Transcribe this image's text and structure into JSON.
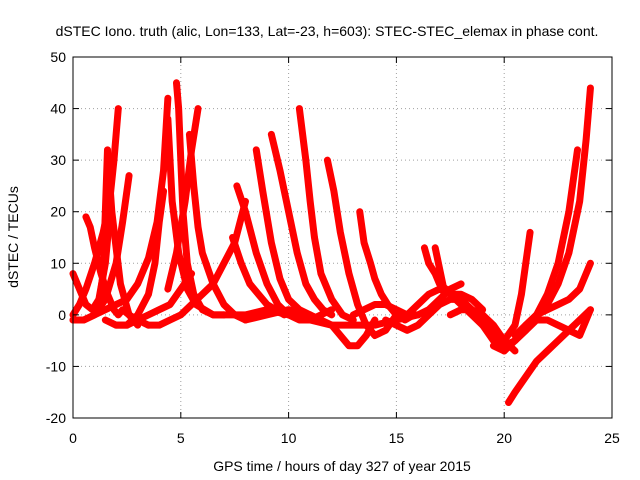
{
  "chart_data": {
    "type": "scatter",
    "title": "dSTEC Iono. truth (alic, Lon=133, Lat=-23, h=603): STEC-STEC_elemax in phase cont.",
    "xlabel": "GPS time / hours of day 327 of year 2015",
    "ylabel": "dSTEC  / TECUs",
    "xlim": [
      0,
      25
    ],
    "ylim": [
      -20,
      50
    ],
    "xticks": [
      0,
      5,
      10,
      15,
      20,
      25
    ],
    "yticks": [
      -20,
      -10,
      0,
      10,
      20,
      30,
      40,
      50
    ],
    "grid": true,
    "marker": "+",
    "color": "#ff0000",
    "series": [
      {
        "x": [
          0.0,
          0.3,
          0.6,
          0.9,
          1.2,
          1.5,
          1.7
        ],
        "y": [
          8,
          5,
          2,
          1,
          3,
          10,
          19
        ]
      },
      {
        "x": [
          0.6,
          0.8,
          1.0,
          1.3,
          1.6,
          1.9,
          2.1,
          2.3,
          2.6,
          3.0,
          3.5
        ],
        "y": [
          19,
          17,
          13,
          8,
          4,
          1,
          0,
          1,
          0,
          -1,
          -2
        ]
      },
      {
        "x": [
          0.0,
          0.3,
          0.6,
          1.0,
          1.4,
          1.7,
          1.9,
          2.1
        ],
        "y": [
          0,
          2,
          5,
          10,
          16,
          22,
          30,
          40
        ]
      },
      {
        "x": [
          0.0,
          0.5,
          1.0,
          1.5,
          2.0,
          2.3,
          2.6
        ],
        "y": [
          -1,
          -1,
          0,
          3,
          10,
          18,
          27
        ]
      },
      {
        "x": [
          0.0,
          0.5,
          1.0,
          1.5,
          2.0,
          2.5,
          3.0,
          3.5,
          3.9,
          4.2,
          4.4
        ],
        "y": [
          -1,
          -1,
          0,
          1,
          2,
          3,
          6,
          11,
          18,
          28,
          42
        ]
      },
      {
        "x": [
          1.2,
          1.4,
          1.5,
          1.6,
          1.8,
          2.2,
          2.6,
          3.0
        ],
        "y": [
          2,
          8,
          20,
          32,
          20,
          6,
          0,
          -2
        ]
      },
      {
        "x": [
          2.0,
          2.5,
          3.0,
          3.5,
          3.8,
          4.0,
          4.2
        ],
        "y": [
          -2,
          -2,
          0,
          4,
          10,
          18,
          24
        ]
      },
      {
        "x": [
          1.5,
          2.0,
          2.5,
          3.0,
          3.5,
          4.0,
          4.5,
          5.0,
          5.5
        ],
        "y": [
          -1,
          -2,
          -2,
          -1,
          0,
          1,
          2,
          5,
          8
        ]
      },
      {
        "x": [
          4.4,
          4.6,
          4.9,
          5.3,
          5.7,
          6.1,
          6.5,
          7.0
        ],
        "y": [
          38,
          22,
          12,
          5,
          2,
          1,
          0,
          0
        ]
      },
      {
        "x": [
          4.8,
          4.9,
          5.0,
          5.1,
          5.3,
          5.6,
          6.0,
          6.5,
          7.0
        ],
        "y": [
          45,
          40,
          30,
          20,
          10,
          4,
          1,
          0,
          0
        ]
      },
      {
        "x": [
          4.4,
          4.8,
          5.2,
          5.5,
          5.8
        ],
        "y": [
          5,
          12,
          22,
          32,
          40
        ]
      },
      {
        "x": [
          3.5,
          4.0,
          4.5,
          5.0,
          5.5,
          6.0,
          6.5,
          7.0,
          7.5,
          8.0
        ],
        "y": [
          -2,
          -2,
          -1,
          0,
          2,
          4,
          6,
          10,
          14,
          22
        ]
      },
      {
        "x": [
          5.4,
          5.6,
          5.8,
          6.0,
          6.5,
          7.0,
          7.5,
          8.0,
          8.5
        ],
        "y": [
          35,
          25,
          17,
          12,
          6,
          2,
          0,
          -1,
          0
        ]
      },
      {
        "x": [
          7.6,
          8.0,
          8.5,
          9.0,
          9.5,
          10.0,
          10.5,
          11.0,
          11.5,
          12.0
        ],
        "y": [
          25,
          20,
          12,
          6,
          2,
          0,
          -1,
          -1,
          0,
          1
        ]
      },
      {
        "x": [
          7.4,
          7.8,
          8.2,
          8.6,
          9.0,
          9.4,
          9.8
        ],
        "y": [
          15,
          10,
          6,
          4,
          2,
          1,
          0
        ]
      },
      {
        "x": [
          8.5,
          8.8,
          9.2,
          9.6,
          10.0,
          10.5,
          11.0
        ],
        "y": [
          32,
          24,
          14,
          7,
          3,
          1,
          0
        ]
      },
      {
        "x": [
          9.2,
          9.6,
          10.0,
          10.4,
          10.8,
          11.2,
          11.6,
          12.0
        ],
        "y": [
          35,
          28,
          20,
          12,
          6,
          3,
          1,
          0
        ]
      },
      {
        "x": [
          10.5,
          10.8,
          11.0,
          11.2,
          11.5,
          12.0,
          12.5,
          13.0
        ],
        "y": [
          40,
          30,
          22,
          15,
          8,
          3,
          0,
          -1
        ]
      },
      {
        "x": [
          11.8,
          12.1,
          12.4,
          12.8,
          13.2,
          13.6,
          14.0,
          14.5,
          15.0
        ],
        "y": [
          30,
          24,
          16,
          8,
          2,
          -2,
          -4,
          -3,
          0
        ]
      },
      {
        "x": [
          8.0,
          9.0,
          10.0,
          11.0,
          12.0,
          12.8,
          13.2,
          13.6,
          14.0
        ],
        "y": [
          -1,
          0,
          1,
          0,
          -2,
          -6,
          -6,
          -4,
          -1
        ]
      },
      {
        "x": [
          7.0,
          8.0,
          9.0,
          10.0,
          11.0,
          12.0,
          13.0,
          14.0,
          15.0,
          16.0
        ],
        "y": [
          0,
          0,
          1,
          0,
          -1,
          -2,
          -2,
          -2,
          -1,
          0
        ]
      },
      {
        "x": [
          13.3,
          13.5,
          13.8,
          14.0,
          14.3,
          14.6,
          15.0,
          15.4,
          15.8
        ],
        "y": [
          20,
          14,
          10,
          7,
          4,
          2,
          0,
          -1,
          0
        ]
      },
      {
        "x": [
          13.0,
          13.5,
          14.0,
          14.5,
          15.0,
          15.5,
          16.0,
          16.5,
          17.0,
          17.5,
          18.0
        ],
        "y": [
          0,
          1,
          2,
          2,
          1,
          0,
          0,
          1,
          3,
          5,
          6
        ]
      },
      {
        "x": [
          16.3,
          16.5,
          16.8,
          17.0,
          17.3,
          17.6,
          18.0,
          18.5,
          19.0,
          19.5,
          20.0
        ],
        "y": [
          13,
          10,
          8,
          6,
          5,
          4,
          3,
          1,
          -2,
          -5,
          -7
        ]
      },
      {
        "x": [
          15.5,
          16.0,
          16.5,
          17.0,
          17.5,
          18.0,
          18.5,
          19.0,
          19.5,
          20.0
        ],
        "y": [
          0,
          2,
          4,
          5,
          4,
          2,
          0,
          -2,
          -4,
          -6
        ]
      },
      {
        "x": [
          16.8,
          17.0,
          17.2,
          17.5,
          18.0,
          18.5,
          19.0
        ],
        "y": [
          13,
          9,
          5,
          4,
          4,
          3,
          1
        ]
      },
      {
        "x": [
          14.5,
          15.0,
          15.5,
          16.0,
          16.5,
          17.0,
          17.5,
          18.0
        ],
        "y": [
          -1,
          -2,
          -3,
          -2,
          0,
          2,
          3,
          3
        ]
      },
      {
        "x": [
          17.5,
          18.0,
          18.5,
          19.0,
          19.5,
          20.0,
          20.5
        ],
        "y": [
          0,
          1,
          1,
          0,
          -2,
          -5,
          -7
        ]
      },
      {
        "x": [
          19.5,
          20.0,
          20.5,
          21.0,
          21.5,
          22.0,
          22.5,
          23.0,
          23.5,
          24.0
        ],
        "y": [
          -6,
          -7,
          -5,
          -2,
          0,
          1,
          2,
          3,
          5,
          10
        ]
      },
      {
        "x": [
          20.2,
          20.5,
          21.0,
          21.5,
          22.0,
          22.5,
          23.0,
          23.5,
          24.0
        ],
        "y": [
          -17,
          -15,
          -12,
          -9,
          -7,
          -5,
          -3,
          -1,
          1
        ]
      },
      {
        "x": [
          20.5,
          21.0,
          21.5,
          22.0,
          22.5,
          23.0,
          23.5,
          24.0
        ],
        "y": [
          -5,
          -3,
          -1,
          -1,
          -2,
          -3,
          -4,
          1
        ]
      },
      {
        "x": [
          19.0,
          19.5,
          20.0,
          20.5,
          20.8,
          21.0,
          21.2
        ],
        "y": [
          0,
          -3,
          -5,
          -2,
          4,
          10,
          16
        ]
      },
      {
        "x": [
          19.5,
          20.0,
          20.5,
          21.0,
          21.5,
          22.0,
          22.5,
          23.0,
          23.4
        ],
        "y": [
          -4,
          -6,
          -5,
          -3,
          0,
          4,
          10,
          20,
          32
        ]
      },
      {
        "x": [
          20.5,
          21.0,
          21.5,
          22.0,
          22.5,
          23.0,
          23.5,
          23.8,
          24.0
        ],
        "y": [
          -4,
          -2,
          0,
          2,
          6,
          12,
          22,
          34,
          44
        ]
      }
    ]
  }
}
